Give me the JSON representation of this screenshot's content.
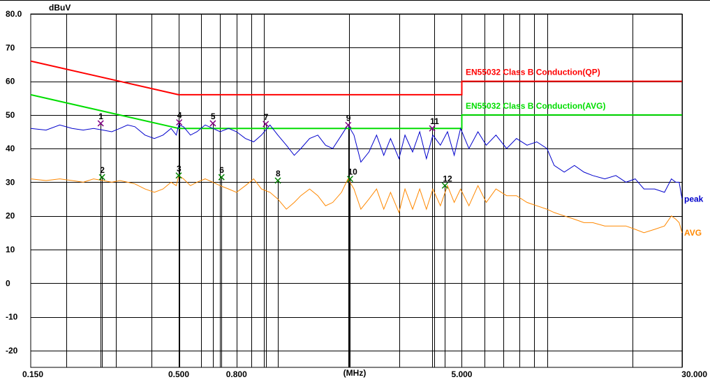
{
  "chart_data": {
    "type": "line",
    "x_scale": "log",
    "grid": true,
    "xlim": [
      0.15,
      30.0
    ],
    "ylim": [
      -25,
      80
    ],
    "y_unit": "dBuV",
    "x_unit": "(MHz)",
    "y_ticks": [
      {
        "value": 80,
        "label": "80.0"
      },
      {
        "value": 70,
        "label": "70"
      },
      {
        "value": 60,
        "label": "60"
      },
      {
        "value": 50,
        "label": "50"
      },
      {
        "value": 40,
        "label": "40"
      },
      {
        "value": 30,
        "label": "30"
      },
      {
        "value": 20,
        "label": "20"
      },
      {
        "value": 10,
        "label": "10"
      },
      {
        "value": 0,
        "label": "0"
      },
      {
        "value": -10,
        "label": "-10"
      },
      {
        "value": -20,
        "label": "-20"
      }
    ],
    "x_ticks": [
      {
        "value": 0.15,
        "label": "0.150"
      },
      {
        "value": 0.5,
        "label": "0.500"
      },
      {
        "value": 0.8,
        "label": "0.800"
      },
      {
        "value": 5.0,
        "label": "5.000"
      },
      {
        "value": 30.0,
        "label": "30.000"
      }
    ],
    "x_grid": [
      0.2,
      0.3,
      0.4,
      0.5,
      0.6,
      0.7,
      0.8,
      0.9,
      1,
      2,
      3,
      4,
      5,
      6,
      7,
      8,
      9,
      10,
      20,
      30
    ],
    "limits": [
      {
        "name": "EN55032 Class B Conduction(QP)",
        "color": "#ff0000",
        "points": [
          [
            0.15,
            66
          ],
          [
            0.5,
            56
          ],
          [
            5.0,
            56
          ],
          [
            5.0,
            60
          ],
          [
            30.0,
            60
          ]
        ]
      },
      {
        "name": "EN55032 Class B Conduction(AVG)",
        "color": "#00dd00",
        "points": [
          [
            0.15,
            56
          ],
          [
            0.5,
            46
          ],
          [
            5.0,
            46
          ],
          [
            5.0,
            50
          ],
          [
            30.0,
            50
          ]
        ]
      }
    ],
    "series": [
      {
        "name": "peak",
        "color": "#0000cc",
        "x": [
          0.15,
          0.17,
          0.19,
          0.21,
          0.23,
          0.25,
          0.27,
          0.29,
          0.31,
          0.33,
          0.35,
          0.38,
          0.41,
          0.44,
          0.47,
          0.49,
          0.5,
          0.52,
          0.55,
          0.58,
          0.62,
          0.66,
          0.7,
          0.75,
          0.8,
          0.86,
          0.92,
          0.98,
          1.05,
          1.12,
          1.2,
          1.28,
          1.35,
          1.45,
          1.55,
          1.65,
          1.75,
          1.88,
          1.98,
          2.08,
          2.2,
          2.35,
          2.5,
          2.65,
          2.8,
          3.0,
          3.15,
          3.35,
          3.55,
          3.75,
          3.95,
          4.2,
          4.45,
          4.7,
          4.95,
          5.3,
          5.7,
          6.1,
          6.6,
          7.2,
          7.8,
          8.5,
          9.2,
          10.0,
          10.6,
          11.5,
          12.5,
          13.5,
          14.5,
          16.0,
          17.5,
          19.0,
          20.5,
          22.0,
          24.0,
          26.0,
          27.5,
          28.5,
          29.3,
          30.0
        ],
        "y": [
          46,
          45.5,
          47,
          46,
          45.5,
          46,
          45.5,
          45,
          46,
          47,
          46.5,
          44,
          43,
          44,
          46,
          44,
          47,
          46.5,
          44,
          45,
          47,
          46,
          45,
          46,
          45,
          43,
          42,
          44,
          47,
          44,
          41,
          38,
          40,
          43,
          44,
          41,
          40,
          44,
          47,
          44,
          36,
          39,
          44,
          38,
          43,
          37,
          44,
          39,
          45,
          37,
          44,
          41,
          45,
          38,
          46,
          40,
          45,
          41,
          44,
          40,
          43,
          41,
          42,
          40,
          35,
          33,
          35,
          33,
          32,
          31,
          32,
          30,
          31,
          28,
          28,
          27,
          31,
          30,
          30,
          25
        ]
      },
      {
        "name": "AVG",
        "color": "#ff8800",
        "x": [
          0.15,
          0.17,
          0.19,
          0.21,
          0.23,
          0.25,
          0.27,
          0.29,
          0.31,
          0.33,
          0.35,
          0.38,
          0.41,
          0.44,
          0.47,
          0.49,
          0.5,
          0.52,
          0.55,
          0.58,
          0.62,
          0.66,
          0.7,
          0.75,
          0.8,
          0.86,
          0.92,
          0.98,
          1.05,
          1.12,
          1.2,
          1.28,
          1.35,
          1.45,
          1.55,
          1.65,
          1.75,
          1.88,
          1.98,
          2.08,
          2.2,
          2.35,
          2.5,
          2.65,
          2.8,
          3.0,
          3.15,
          3.35,
          3.55,
          3.75,
          3.95,
          4.2,
          4.45,
          4.7,
          4.95,
          5.3,
          5.7,
          6.1,
          6.6,
          7.2,
          7.8,
          8.5,
          9.2,
          10.0,
          10.6,
          11.5,
          12.5,
          13.5,
          14.5,
          16.0,
          17.5,
          19.0,
          20.5,
          22.0,
          24.0,
          26.0,
          27.5,
          28.5,
          29.3,
          30.0
        ],
        "y": [
          31,
          30.5,
          31,
          30.5,
          30,
          31,
          30.5,
          30,
          30.5,
          30,
          29.5,
          28,
          27,
          28,
          30,
          29,
          32,
          31,
          29,
          30,
          31,
          30,
          29,
          28,
          27,
          29,
          31,
          28,
          27,
          25,
          22,
          24,
          26,
          28,
          26,
          23,
          24,
          27,
          31,
          28,
          22,
          25,
          28,
          22,
          27,
          21,
          28,
          22,
          28,
          22,
          28,
          23,
          29,
          24,
          28,
          23,
          29,
          24,
          28,
          26,
          26,
          24,
          23,
          22,
          21,
          20,
          19,
          18,
          18,
          17,
          17,
          17,
          16,
          15,
          16,
          17,
          20,
          19,
          18,
          15
        ]
      }
    ],
    "markers": [
      {
        "label": "1",
        "x": 0.265,
        "y": 47.5,
        "series": "peak"
      },
      {
        "label": "2",
        "x": 0.268,
        "y": 31.5,
        "series": "AVG"
      },
      {
        "label": "3",
        "x": 0.5,
        "y": 32.0,
        "series": "AVG"
      },
      {
        "label": "4",
        "x": 0.502,
        "y": 47.8,
        "series": "peak"
      },
      {
        "label": "5",
        "x": 0.66,
        "y": 47.5,
        "series": "peak"
      },
      {
        "label": "6",
        "x": 0.708,
        "y": 31.5,
        "series": "AVG"
      },
      {
        "label": "7",
        "x": 1.015,
        "y": 47.3,
        "series": "peak"
      },
      {
        "label": "8",
        "x": 1.12,
        "y": 30.5,
        "series": "AVG"
      },
      {
        "label": "9",
        "x": 1.985,
        "y": 47.0,
        "series": "peak"
      },
      {
        "label": "10",
        "x": 2.015,
        "y": 31.0,
        "series": "AVG"
      },
      {
        "label": "11",
        "x": 3.93,
        "y": 46.0,
        "series": "peak"
      },
      {
        "label": "12",
        "x": 4.36,
        "y": 29.0,
        "series": "AVG"
      }
    ]
  }
}
